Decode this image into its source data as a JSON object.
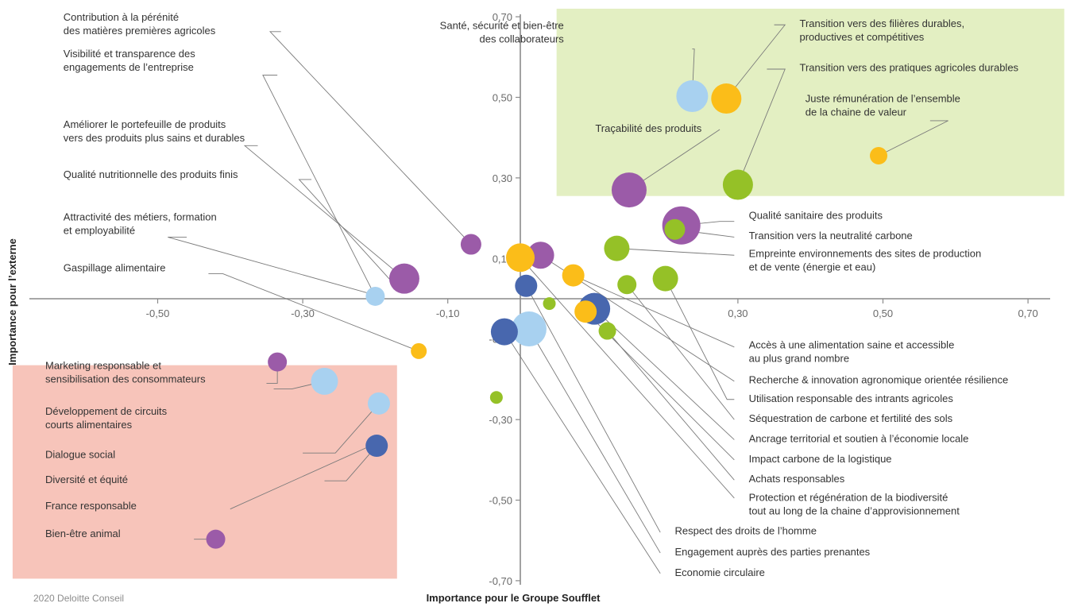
{
  "chart_data": {
    "type": "scatter",
    "xlabel": "Importance pour le Groupe Soufflet",
    "ylabel": "Importance pour l’externe",
    "xlim": [
      -0.7,
      0.75
    ],
    "ylim": [
      -0.72,
      0.72
    ],
    "x_ticks": [
      {
        "value": -0.5,
        "label": "-0,50"
      },
      {
        "value": -0.3,
        "label": "-0,30"
      },
      {
        "value": -0.1,
        "label": "-0,10"
      },
      {
        "value": 0.3,
        "label": "0,30"
      },
      {
        "value": 0.5,
        "label": "0,50"
      },
      {
        "value": 0.7,
        "label": "0,70"
      }
    ],
    "y_ticks": [
      {
        "value": 0.7,
        "label": "0,70"
      },
      {
        "value": 0.5,
        "label": "0,50"
      },
      {
        "value": 0.3,
        "label": "0,30"
      },
      {
        "value": 0.1,
        "label": "0,10"
      },
      {
        "value": -0.1,
        "label": "-0,10"
      },
      {
        "value": -0.3,
        "label": "-0,30"
      },
      {
        "value": -0.5,
        "label": "-0,50"
      },
      {
        "value": -0.7,
        "label": "-0,70"
      }
    ],
    "regions": [
      {
        "x": [
          0.05,
          0.75
        ],
        "y": [
          0.255,
          0.72
        ],
        "color": "#e3efc2"
      },
      {
        "x": [
          -0.7,
          -0.17
        ],
        "y": [
          -0.695,
          -0.165
        ],
        "color": "#f7c4ba"
      }
    ],
    "colors": {
      "purple": "#9b5ba8",
      "lightblue": "#a8d1f0",
      "yellow": "#fbbd19",
      "green": "#95c127",
      "darkblue": "#4867ae"
    },
    "points": [
      {
        "label": "Santé, sécurité et bien-être\ndes collaborateurs",
        "x": 0.237,
        "y": 0.503,
        "r": 20,
        "color": "lightblue",
        "anchor": "end",
        "label_pos": [
          0.06,
          0.67
        ],
        "leader": [
          [
            0.24,
            0.62
          ],
          [
            0.237,
            0.62
          ]
        ]
      },
      {
        "label": "Transition vers des filières durables,\nproductives et compétitives",
        "x": 0.284,
        "y": 0.497,
        "r": 19,
        "color": "yellow",
        "anchor": "start",
        "label_pos": [
          0.385,
          0.675
        ],
        "leader": [
          [
            0.365,
            0.68
          ],
          [
            0.35,
            0.68
          ]
        ]
      },
      {
        "label": "Transition vers des pratiques agricoles durables",
        "x": 0.3,
        "y": 0.283,
        "r": 19,
        "color": "green",
        "anchor": "start",
        "label_pos": [
          0.385,
          0.565
        ],
        "leader": [
          [
            0.365,
            0.57
          ],
          [
            0.34,
            0.57
          ]
        ]
      },
      {
        "label": "Juste rémunération de l’ensemble\nde la chaine de valeur",
        "x": 0.494,
        "y": 0.355,
        "r": 11,
        "color": "yellow",
        "anchor": "start",
        "label_pos": [
          0.393,
          0.488
        ],
        "leader": [
          [
            0.59,
            0.442
          ],
          [
            0.565,
            0.442
          ]
        ]
      },
      {
        "label": "Traçabilité des produits",
        "x": 0.15,
        "y": 0.27,
        "r": 22,
        "color": "purple",
        "anchor": "end",
        "label_pos": [
          0.25,
          0.414
        ],
        "leader": [
          [
            0.275,
            0.42
          ]
        ]
      },
      {
        "label": "Qualité sanitaire des produits",
        "x": 0.222,
        "y": 0.182,
        "r": 24,
        "color": "purple",
        "anchor": "start",
        "label_pos": [
          0.315,
          0.198
        ],
        "leader": [
          [
            0.275,
            0.192
          ],
          [
            0.295,
            0.192
          ]
        ]
      },
      {
        "label": "Transition vers la neutralité carbone",
        "x": 0.213,
        "y": 0.172,
        "r": 13,
        "color": "green",
        "anchor": "start",
        "label_pos": [
          0.315,
          0.148
        ],
        "leader": [
          [
            0.295,
            0.153
          ]
        ]
      },
      {
        "label": "Empreinte environnements des sites de production\net de vente (énergie et eau)",
        "x": 0.133,
        "y": 0.125,
        "r": 16,
        "color": "green",
        "anchor": "start",
        "label_pos": [
          0.315,
          0.104
        ],
        "leader": [
          [
            0.295,
            0.108
          ]
        ]
      },
      {
        "label": "Accès à une alimentation saine et accessible\nau plus grand nombre",
        "x": 0.073,
        "y": 0.058,
        "r": 14,
        "color": "yellow",
        "anchor": "start",
        "label_pos": [
          0.315,
          -0.123
        ],
        "leader": [
          [
            0.295,
            -0.12
          ]
        ]
      },
      {
        "label": "Recherche & innovation agronomique orientée résilience",
        "x": 0.028,
        "y": 0.108,
        "r": 17,
        "color": "purple",
        "anchor": "start",
        "label_pos": [
          0.315,
          -0.21
        ],
        "leader": [
          [
            0.295,
            -0.205
          ]
        ]
      },
      {
        "label": "Utilisation responsable des intrants agricoles",
        "x": 0.2,
        "y": 0.05,
        "r": 16,
        "color": "green",
        "anchor": "start",
        "label_pos": [
          0.315,
          -0.256
        ],
        "leader": [
          [
            0.285,
            -0.25
          ],
          [
            0.295,
            -0.25
          ]
        ]
      },
      {
        "label": "Séquestration de carbone et fertilité des sols",
        "x": 0.147,
        "y": 0.035,
        "r": 12,
        "color": "green",
        "anchor": "start",
        "label_pos": [
          0.315,
          -0.306
        ],
        "leader": [
          [
            0.295,
            -0.3
          ]
        ]
      },
      {
        "label": "Ancrage territorial et soutien à l’économie locale",
        "x": 0.102,
        "y": -0.025,
        "r": 20,
        "color": "darkblue",
        "anchor": "start",
        "label_pos": [
          0.315,
          -0.356
        ],
        "leader": [
          [
            0.295,
            -0.35
          ]
        ]
      },
      {
        "label": "Impact carbone de la logistique",
        "x": 0.09,
        "y": -0.032,
        "r": 14,
        "color": "yellow",
        "anchor": "start",
        "label_pos": [
          0.315,
          -0.406
        ],
        "leader": [
          [
            0.295,
            -0.4
          ]
        ]
      },
      {
        "label": "Achats responsables",
        "x": 0.12,
        "y": -0.08,
        "r": 11,
        "color": "green",
        "anchor": "start",
        "label_pos": [
          0.315,
          -0.456
        ],
        "leader": [
          [
            0.295,
            -0.45
          ]
        ]
      },
      {
        "label": "Protection et régénération de la biodiversité\ntout au long de la chaine d’approvisionnement",
        "x": 0.0,
        "y": 0.102,
        "r": 18,
        "color": "yellow",
        "anchor": "start",
        "label_pos": [
          0.315,
          -0.502
        ],
        "leader": [
          [
            0.295,
            -0.495
          ]
        ]
      },
      {
        "label": "Respect des droits de l’homme",
        "x": 0.008,
        "y": 0.032,
        "r": 14,
        "color": "darkblue",
        "anchor": "start",
        "label_pos": [
          0.213,
          -0.585
        ],
        "leader": [
          [
            0.193,
            -0.58
          ]
        ]
      },
      {
        "label": "Engagement auprès des parties prenantes",
        "x": 0.012,
        "y": -0.075,
        "r": 22,
        "color": "lightblue",
        "anchor": "start",
        "label_pos": [
          0.213,
          -0.637
        ],
        "leader": [
          [
            0.193,
            -0.631
          ]
        ]
      },
      {
        "label": "Economie circulaire",
        "x": -0.022,
        "y": -0.082,
        "r": 17,
        "color": "darkblue",
        "anchor": "start",
        "label_pos": [
          0.213,
          -0.688
        ],
        "leader": [
          [
            0.193,
            -0.682
          ]
        ]
      },
      {
        "label": "Contribution à la pérénité\ndes matières premières agricoles",
        "x": -0.068,
        "y": 0.135,
        "r": 13,
        "color": "purple",
        "anchor": "start",
        "label_pos": [
          -0.63,
          0.69
        ],
        "leader": [
          [
            -0.345,
            0.663
          ],
          [
            -0.33,
            0.663
          ]
        ]
      },
      {
        "label": "Visibilité et transparence des\nengagements de l’entreprise",
        "x": -0.2,
        "y": 0.006,
        "r": 12,
        "color": "lightblue",
        "anchor": "start",
        "label_pos": [
          -0.63,
          0.6
        ],
        "leader": [
          [
            -0.355,
            0.555
          ],
          [
            -0.335,
            0.555
          ]
        ]
      },
      {
        "label": "Améliorer le portefeuille de produits\nvers des produits plus sains et durables",
        "x": -0.16,
        "y": 0.05,
        "r": 19,
        "color": "purple",
        "anchor": "start",
        "label_pos": [
          -0.63,
          0.424
        ],
        "leader": [
          [
            -0.38,
            0.38
          ],
          [
            -0.362,
            0.38
          ]
        ]
      },
      {
        "label": "Qualité nutritionnelle des produits finis",
        "x": -0.18,
        "y": 0.048,
        "r": 0,
        "color": "purple",
        "anchor": "start",
        "label_pos": [
          -0.63,
          0.3
        ],
        "leader": [
          [
            -0.305,
            0.296
          ],
          [
            -0.288,
            0.296
          ]
        ]
      },
      {
        "label": "Attractivité des métiers, formation\net employabilité",
        "x": -0.198,
        "y": 0.008,
        "r": 0,
        "color": "lightblue",
        "anchor": "start",
        "label_pos": [
          -0.63,
          0.194
        ],
        "leader": [
          [
            -0.486,
            0.153
          ],
          [
            -0.46,
            0.153
          ]
        ]
      },
      {
        "label": "Gaspillage alimentaire",
        "x": -0.14,
        "y": -0.13,
        "r": 10,
        "color": "yellow",
        "anchor": "start",
        "label_pos": [
          -0.63,
          0.068
        ],
        "leader": [
          [
            -0.41,
            0.062
          ],
          [
            -0.43,
            0.062
          ]
        ]
      },
      {
        "label": "Marketing responsable et\nsensibilisation des consommateurs",
        "x": -0.335,
        "y": -0.157,
        "r": 12,
        "color": "purple",
        "anchor": "start",
        "label_pos": [
          -0.655,
          -0.175
        ],
        "leader": [
          [
            -0.335,
            -0.21
          ],
          [
            -0.35,
            -0.21
          ]
        ]
      },
      {
        "label": "Développement de circuits\ncourts alimentaires",
        "x": -0.27,
        "y": -0.205,
        "r": 17,
        "color": "lightblue",
        "anchor": "start",
        "label_pos": [
          -0.655,
          -0.288
        ],
        "leader": [
          [
            -0.315,
            -0.224
          ],
          [
            -0.34,
            -0.224
          ]
        ]
      },
      {
        "label": "Dialogue social",
        "x": -0.195,
        "y": -0.26,
        "r": 14,
        "color": "lightblue",
        "anchor": "start",
        "label_pos": [
          -0.655,
          -0.395
        ],
        "leader": [
          [
            -0.255,
            -0.383
          ],
          [
            -0.3,
            -0.383
          ]
        ]
      },
      {
        "label": "Diversité et équité",
        "x": -0.198,
        "y": -0.365,
        "r": 14,
        "color": "darkblue",
        "anchor": "start",
        "label_pos": [
          -0.655,
          -0.458
        ],
        "leader": [
          [
            -0.24,
            -0.452
          ],
          [
            -0.27,
            -0.452
          ]
        ]
      },
      {
        "label": "France responsable",
        "x": -0.2,
        "y": -0.36,
        "r": 0,
        "color": "darkblue",
        "anchor": "start",
        "label_pos": [
          -0.655,
          -0.523
        ],
        "leader": [
          [
            -0.4,
            -0.522
          ]
        ]
      },
      {
        "label": "Bien-être animal",
        "x": -0.42,
        "y": -0.597,
        "r": 12,
        "color": "purple",
        "anchor": "start",
        "label_pos": [
          -0.655,
          -0.592
        ],
        "leader": [
          [
            -0.45,
            -0.597
          ]
        ]
      },
      {
        "label": "",
        "x": 0.04,
        "y": -0.012,
        "r": 8,
        "color": "green",
        "anchor": "start",
        "label_pos": [
          0,
          0
        ],
        "leader": []
      },
      {
        "label": "",
        "x": -0.033,
        "y": -0.245,
        "r": 8,
        "color": "green",
        "anchor": "start",
        "label_pos": [
          0,
          0
        ],
        "leader": []
      }
    ]
  },
  "footer": {
    "credit": "2020 Deloitte Conseil"
  }
}
